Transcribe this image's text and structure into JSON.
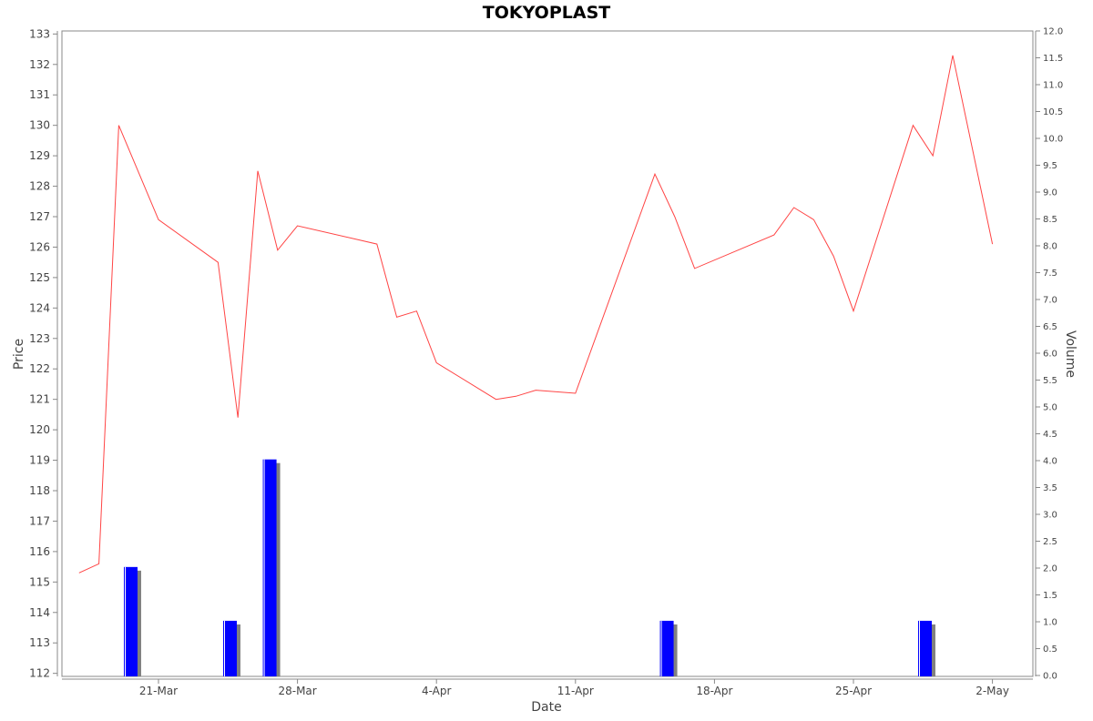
{
  "chart_data": {
    "type": "line",
    "title": "TOKYOPLAST",
    "xlabel": "Date",
    "ylabel_left": "Price",
    "ylabel_right": "Volume",
    "ylim_left": [
      111.9,
      133.1
    ],
    "ylim_right": [
      0,
      12
    ],
    "xlim_days": [
      -5,
      43
    ],
    "left_ticks": [
      112,
      113,
      114,
      115,
      116,
      117,
      118,
      119,
      120,
      121,
      122,
      123,
      124,
      125,
      126,
      127,
      128,
      129,
      130,
      131,
      132,
      133
    ],
    "right_ticks": [
      "0.0",
      "0.5",
      "1.0",
      "1.5",
      "2.0",
      "2.5",
      "3.0",
      "3.5",
      "4.0",
      "4.5",
      "5.0",
      "5.5",
      "6.0",
      "6.5",
      "7.0",
      "7.5",
      "8.0",
      "8.5",
      "9.0",
      "9.5",
      "10.0",
      "10.5",
      "11.0",
      "11.5",
      "12.0"
    ],
    "x_ticks": [
      {
        "label": "21-Mar",
        "day": 0
      },
      {
        "label": "28-Mar",
        "day": 7
      },
      {
        "label": "4-Apr",
        "day": 14
      },
      {
        "label": "11-Apr",
        "day": 21
      },
      {
        "label": "18-Apr",
        "day": 28
      },
      {
        "label": "25-Apr",
        "day": 35
      },
      {
        "label": "2-May",
        "day": 42
      }
    ],
    "series": [
      {
        "type": "line",
        "color": "#ff4444",
        "points": [
          {
            "x": "17-Mar",
            "day": -4,
            "y": 115.3
          },
          {
            "x": "18-Mar",
            "day": -3,
            "y": 115.6
          },
          {
            "x": "19-Mar",
            "day": -2,
            "y": 130.0
          },
          {
            "x": "21-Mar",
            "day": 0,
            "y": 126.9
          },
          {
            "x": "24-Mar",
            "day": 3,
            "y": 125.5
          },
          {
            "x": "25-Mar",
            "day": 4,
            "y": 120.4
          },
          {
            "x": "26-Mar",
            "day": 5,
            "y": 128.5
          },
          {
            "x": "27-Mar",
            "day": 6,
            "y": 125.9
          },
          {
            "x": "28-Mar",
            "day": 7,
            "y": 126.7
          },
          {
            "x": "1-Apr",
            "day": 11,
            "y": 126.1
          },
          {
            "x": "2-Apr",
            "day": 12,
            "y": 123.7
          },
          {
            "x": "3-Apr",
            "day": 13,
            "y": 123.9
          },
          {
            "x": "4-Apr",
            "day": 14,
            "y": 122.2
          },
          {
            "x": "7-Apr",
            "day": 17,
            "y": 121.0
          },
          {
            "x": "8-Apr",
            "day": 18,
            "y": 121.1
          },
          {
            "x": "9-Apr",
            "day": 19,
            "y": 121.3
          },
          {
            "x": "11-Apr",
            "day": 21,
            "y": 121.2
          },
          {
            "x": "15-Apr",
            "day": 25,
            "y": 128.4
          },
          {
            "x": "16-Apr",
            "day": 26,
            "y": 127.0
          },
          {
            "x": "17-Apr",
            "day": 27,
            "y": 125.3
          },
          {
            "x": "21-Apr",
            "day": 31,
            "y": 126.4
          },
          {
            "x": "22-Apr",
            "day": 32,
            "y": 127.3
          },
          {
            "x": "23-Apr",
            "day": 33,
            "y": 126.9
          },
          {
            "x": "24-Apr",
            "day": 34,
            "y": 125.7
          },
          {
            "x": "25-Apr",
            "day": 35,
            "y": 123.9
          },
          {
            "x": "28-Apr",
            "day": 38,
            "y": 130.0
          },
          {
            "x": "29-Apr",
            "day": 39,
            "y": 129.0
          },
          {
            "x": "30-Apr",
            "day": 40,
            "y": 132.3
          },
          {
            "x": "2-May",
            "day": 42,
            "y": 126.1
          }
        ]
      },
      {
        "type": "bar",
        "axis": "right",
        "color": "#0000ff",
        "shadow_color": "#808080",
        "bars": [
          {
            "x": "19-Mar",
            "day": -1.4,
            "value": 2.0
          },
          {
            "x": "24-Mar",
            "day": 3.6,
            "value": 1.0
          },
          {
            "x": "26-Mar",
            "day": 5.6,
            "value": 4.0
          },
          {
            "x": "16-Apr",
            "day": 25.6,
            "value": 1.0
          },
          {
            "x": "29-Apr",
            "day": 38.6,
            "value": 1.0
          }
        ]
      }
    ]
  }
}
